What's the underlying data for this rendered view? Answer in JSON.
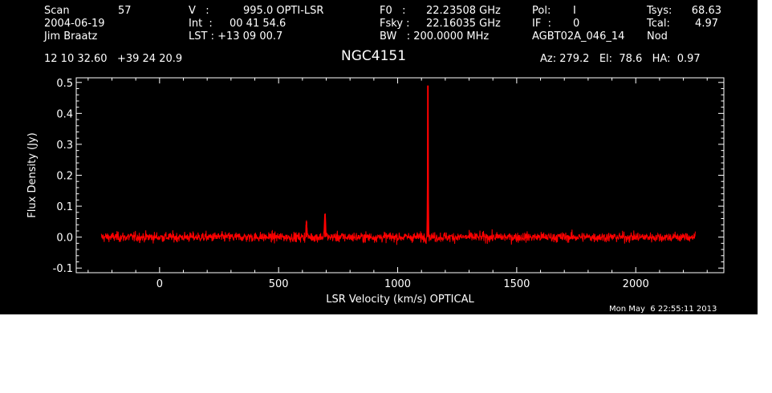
{
  "header": {
    "scan_label": "Scan",
    "scan_value": "57",
    "date": "2004-06-19",
    "observer": "Jim Braatz",
    "v_label": "V   :",
    "v_value": "995.0 OPTI-LSR",
    "int_label": "Int  :",
    "int_value": "00 41 54.6",
    "lst_label": "LST : +13 09 00.7",
    "f0_label": "F0   :",
    "f0_value": "22.23508 GHz",
    "fsky_label": "Fsky :",
    "fsky_value": "22.16035 GHz",
    "bw_label": "BW   : 200.0000 MHz",
    "pol_label": "Pol:",
    "pol_value": "I",
    "if_label": "IF  :",
    "if_value": "0",
    "project": "AGBT02A_046_14",
    "tsys_label": "Tsys:",
    "tsys_value": "68.63",
    "tcal_label": "Tcal:",
    "tcal_value": "4.97",
    "nod": "Nod",
    "coords": "12 10 32.60   +39 24 20.9",
    "source": "NGC4151",
    "az_el_ha": "Az: 279.2   El:  78.6   HA:  0.97",
    "timestamp": "Mon May  6 22:55:11 2013"
  },
  "chart_data": {
    "type": "line",
    "title": "NGC4151",
    "xlabel": "LSR Velocity (km/s) OPTICAL",
    "ylabel": "Flux Density (Jy)",
    "xlim": [
      -350,
      2370
    ],
    "ylim": [
      -0.115,
      0.515
    ],
    "xticks": [
      0,
      500,
      1000,
      1500,
      2000
    ],
    "yticks": [
      -0.1,
      0.0,
      0.1,
      0.2,
      0.3,
      0.4,
      0.5
    ],
    "ytick_labels": [
      "-0.1",
      "0.0",
      "0.1",
      "0.2",
      "0.3",
      "0.4",
      "0.5"
    ],
    "x_range": [
      -245,
      2250
    ],
    "noise_rms": 0.008,
    "line_color": "#ff0000",
    "axis_color": "#ffffff",
    "features": [
      {
        "x": 617,
        "peak": 0.05,
        "width": 5
      },
      {
        "x": 695,
        "peak": 0.075,
        "width": 6
      },
      {
        "x": 1127,
        "peak": 0.49,
        "width": 4
      }
    ]
  }
}
